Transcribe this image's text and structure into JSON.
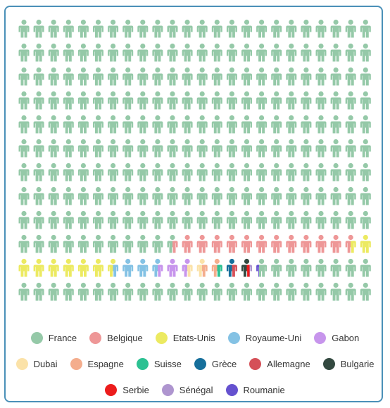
{
  "chart_data": {
    "type": "waffle",
    "title": "",
    "unit_icon": "person-icon",
    "categories": [
      "France",
      "Belgique",
      "Etats-Unis",
      "Royaume-Uni",
      "Gabon",
      "Dubai",
      "Espagne",
      "Suisse",
      "Grèce",
      "Allemagne",
      "Bulgarie",
      "Serbie",
      "Sénégal",
      "Roumanie"
    ],
    "values": [
      226.5,
      12,
      8,
      3,
      2,
      1,
      1,
      0.5,
      0.5,
      0.5,
      0.5,
      0.25,
      0.25,
      0.25
    ],
    "colors": [
      "#95c9a8",
      "#ee9797",
      "#ecea61",
      "#84c2e4",
      "#c795ec",
      "#fbe2a8",
      "#f4ad8d",
      "#2cc192",
      "#166f9b",
      "#d55058",
      "#334940",
      "#ec1c1c",
      "#ae95cf",
      "#6551cf"
    ],
    "grid": {
      "columns": 24,
      "rows": 12
    },
    "legend_position": "bottom"
  }
}
